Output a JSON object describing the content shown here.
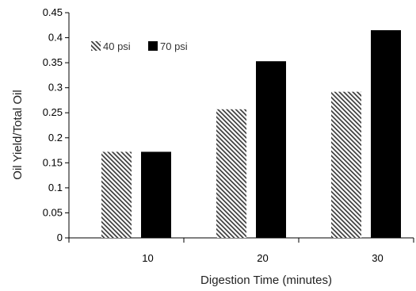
{
  "chart_data": {
    "type": "bar",
    "title": "",
    "xlabel": "Digestion Time (minutes)",
    "ylabel": "Oil Yield/Total Oil",
    "categories": [
      "10",
      "20",
      "30"
    ],
    "ylim": [
      0,
      0.45
    ],
    "yticks": [
      "0",
      "0.05",
      "0.1",
      "0.15",
      "0.2",
      "0.25",
      "0.3",
      "0.35",
      "0.4",
      "0.45"
    ],
    "grid": false,
    "legend_position": "top-left",
    "series": [
      {
        "name": "40 psi",
        "values": [
          0.172,
          0.257,
          0.292
        ],
        "pattern": "diagonal-hatch",
        "color": "#3a3a3a"
      },
      {
        "name": "70 psi",
        "values": [
          0.172,
          0.353,
          0.415
        ],
        "pattern": "solid",
        "color": "#000000"
      }
    ]
  }
}
